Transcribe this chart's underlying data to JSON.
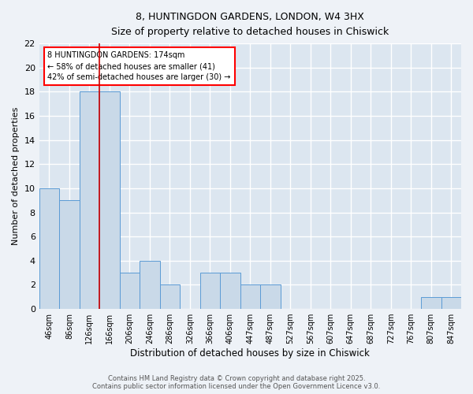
{
  "title1": "8, HUNTINGDON GARDENS, LONDON, W4 3HX",
  "title2": "Size of property relative to detached houses in Chiswick",
  "xlabel": "Distribution of detached houses by size in Chiswick",
  "ylabel": "Number of detached properties",
  "categories": [
    "46sqm",
    "86sqm",
    "126sqm",
    "166sqm",
    "206sqm",
    "246sqm",
    "286sqm",
    "326sqm",
    "366sqm",
    "406sqm",
    "447sqm",
    "487sqm",
    "527sqm",
    "567sqm",
    "607sqm",
    "647sqm",
    "687sqm",
    "727sqm",
    "767sqm",
    "807sqm",
    "847sqm"
  ],
  "values": [
    10,
    9,
    18,
    18,
    3,
    4,
    2,
    0,
    3,
    3,
    2,
    2,
    0,
    0,
    0,
    0,
    0,
    0,
    0,
    1,
    1
  ],
  "bar_color": "#c9d9e8",
  "bar_edge_color": "#5b9bd5",
  "red_line_x": 3,
  "annotation_text": "8 HUNTINGDON GARDENS: 174sqm\n← 58% of detached houses are smaller (41)\n42% of semi-detached houses are larger (30) →",
  "annotation_box_color": "white",
  "annotation_box_edge_color": "red",
  "ylim": [
    0,
    22
  ],
  "yticks": [
    0,
    2,
    4,
    6,
    8,
    10,
    12,
    14,
    16,
    18,
    20,
    22
  ],
  "background_color": "#eef2f7",
  "plot_background_color": "#dce6f0",
  "grid_color": "white",
  "footer_text": "Contains HM Land Registry data © Crown copyright and database right 2025.\nContains public sector information licensed under the Open Government Licence v3.0."
}
